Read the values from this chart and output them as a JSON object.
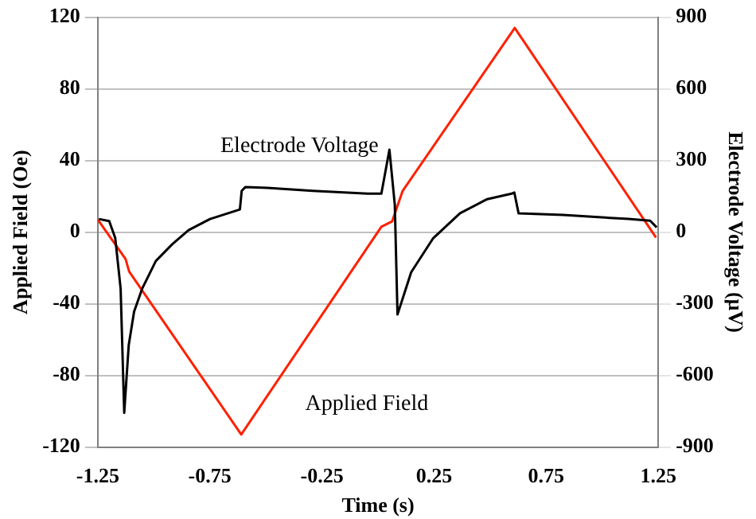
{
  "chart_data": {
    "type": "line",
    "xlabel": "Time (s)",
    "ylabel": "Applied Field (Oe)",
    "y2label": "Electrode Voltage (µV)",
    "xlim": [
      -1.25,
      1.25
    ],
    "xticks": [
      -1.25,
      -0.75,
      -0.25,
      0.25,
      0.75,
      1.25
    ],
    "ylim": [
      -120,
      120
    ],
    "yticks": [
      -120,
      -80,
      -40,
      0,
      40,
      80,
      120
    ],
    "y2lim": [
      -900,
      900
    ],
    "y2ticks": [
      -900,
      -600,
      -300,
      0,
      300,
      600,
      900
    ],
    "grid": "y",
    "legend": false,
    "marker": "none",
    "line_style": "solid",
    "series": [
      {
        "name": "Electrode Voltage",
        "color": "#000000",
        "axis": "y2",
        "x": [
          -1.245,
          -1.199,
          -1.172,
          -1.148,
          -1.132,
          -1.112,
          -1.088,
          -1.052,
          -0.991,
          -0.918,
          -0.845,
          -0.749,
          -0.616,
          -0.608,
          -0.591,
          -0.494,
          -0.291,
          -0.046,
          0.015,
          0.051,
          0.075,
          0.087,
          0.148,
          0.245,
          0.366,
          0.487,
          0.596,
          0.608,
          0.627,
          0.826,
          1.117,
          1.214,
          1.243
        ],
        "values": [
          55,
          46,
          -25,
          -237,
          -757,
          -474,
          -333,
          -237,
          -121,
          -51,
          8,
          55,
          95,
          173,
          189,
          185,
          173,
          161,
          161,
          345,
          114,
          -345,
          -168,
          -27,
          79,
          138,
          161,
          166,
          79,
          72,
          55,
          48,
          20
        ]
      },
      {
        "name": "Applied Field",
        "color": "#ff2000",
        "x": [
          -1.25,
          -1.126,
          -1.11,
          -0.61,
          0.015,
          0.063,
          0.11,
          0.61,
          1.24
        ],
        "values": [
          7,
          -15,
          -22,
          -113,
          3,
          6,
          23,
          114,
          -3
        ]
      }
    ]
  }
}
